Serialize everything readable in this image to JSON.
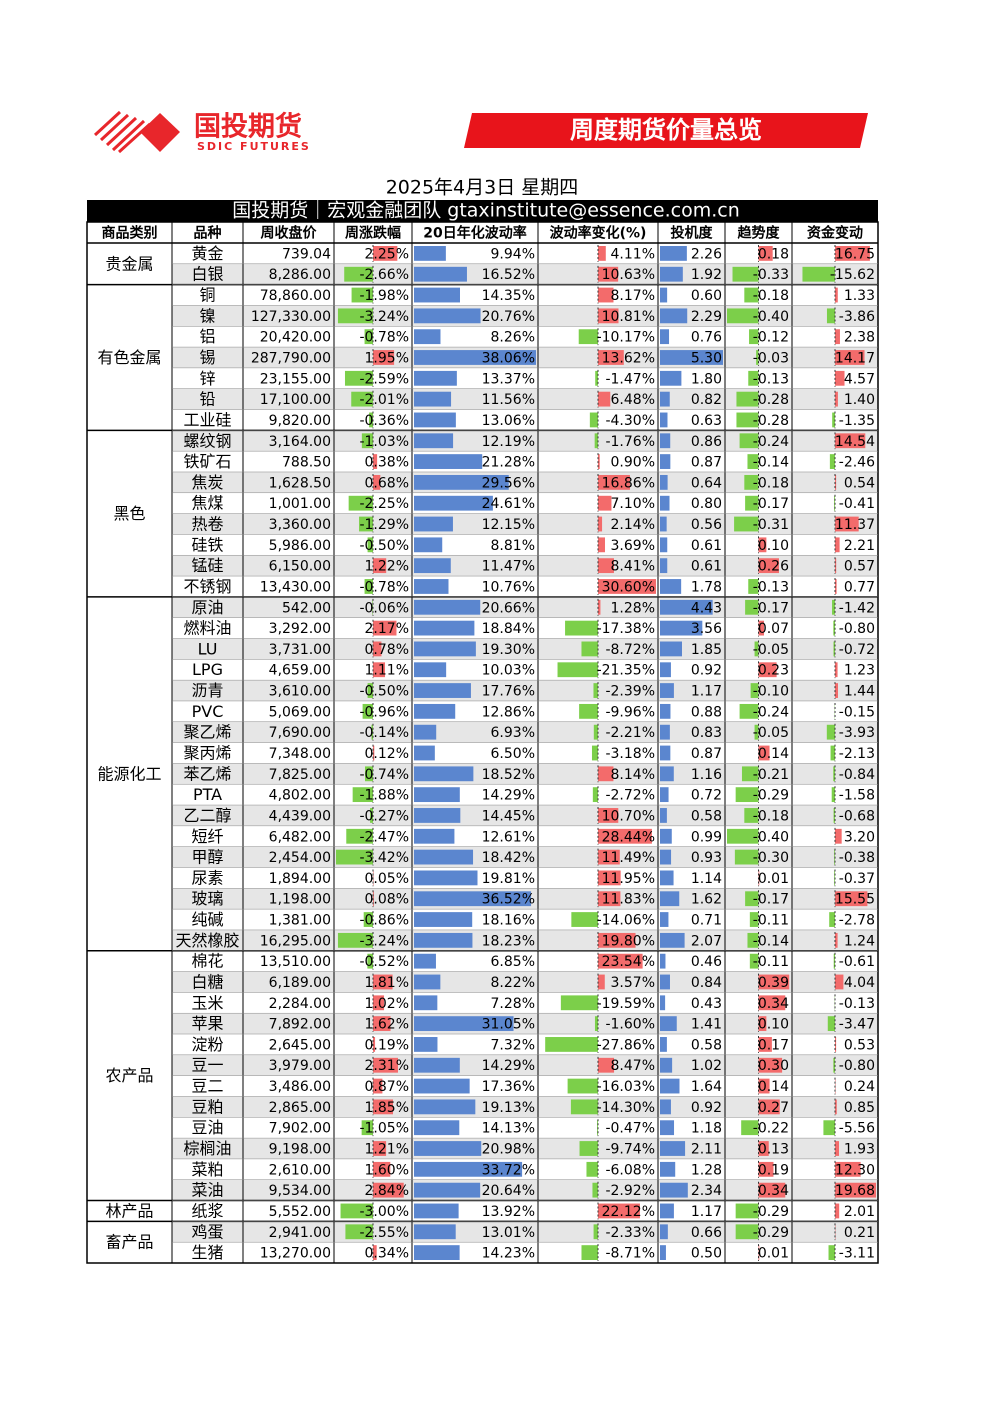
{
  "header": {
    "logo": "国投期货",
    "logo_en": "SDIC FUTURES",
    "banner": "周度期货价量总览",
    "date": "2025年4月3日 星期四",
    "team": "国投期货｜宏观金融团队 gtaxinstitute@essence.com.cn"
  },
  "table": {
    "columns": [
      "商品类别",
      "品种",
      "周收盘价",
      "周涨跌幅",
      "20日年化波动率",
      "波动率变化(%)",
      "投机度",
      "趋势度",
      "资金变动"
    ],
    "groups": [
      {
        "name": "贵金属",
        "rows": [
          [
            "黄金",
            "739.04",
            "2.25%",
            "9.94%",
            "4.11%",
            "2.26",
            "0.18",
            "16.75"
          ],
          [
            "白银",
            "8,286.00",
            "-2.66%",
            "16.52%",
            "10.63%",
            "1.92",
            "-0.33",
            "-15.62"
          ]
        ]
      },
      {
        "name": "有色金属",
        "rows": [
          [
            "铜",
            "78,860.00",
            "-1.98%",
            "14.35%",
            "8.17%",
            "0.60",
            "-0.18",
            "1.33"
          ],
          [
            "镍",
            "127,330.00",
            "-3.24%",
            "20.76%",
            "10.81%",
            "2.29",
            "-0.40",
            "-3.86"
          ],
          [
            "铝",
            "20,420.00",
            "-0.78%",
            "8.26%",
            "-10.17%",
            "0.76",
            "-0.12",
            "2.38"
          ],
          [
            "锡",
            "287,790.00",
            "1.95%",
            "38.06%",
            "13.62%",
            "5.30",
            "-0.03",
            "14.17"
          ],
          [
            "锌",
            "23,155.00",
            "-2.59%",
            "13.37%",
            "-1.47%",
            "1.80",
            "-0.13",
            "4.57"
          ],
          [
            "铅",
            "17,100.00",
            "-2.01%",
            "11.56%",
            "6.48%",
            "0.82",
            "-0.28",
            "1.40"
          ],
          [
            "工业硅",
            "9,820.00",
            "-0.36%",
            "13.06%",
            "-4.30%",
            "0.63",
            "-0.28",
            "-1.35"
          ]
        ]
      },
      {
        "name": "黑色",
        "rows": [
          [
            "螺纹钢",
            "3,164.00",
            "-1.03%",
            "12.19%",
            "-1.76%",
            "0.86",
            "-0.24",
            "14.54"
          ],
          [
            "铁矿石",
            "788.50",
            "0.38%",
            "21.28%",
            "0.90%",
            "0.87",
            "-0.14",
            "-2.46"
          ],
          [
            "焦炭",
            "1,628.50",
            "0.68%",
            "29.56%",
            "16.86%",
            "0.64",
            "-0.18",
            "0.54"
          ],
          [
            "焦煤",
            "1,001.00",
            "-2.25%",
            "24.61%",
            "7.10%",
            "0.80",
            "-0.17",
            "-0.41"
          ],
          [
            "热卷",
            "3,360.00",
            "-1.29%",
            "12.15%",
            "2.14%",
            "0.56",
            "-0.31",
            "11.37"
          ],
          [
            "硅铁",
            "5,986.00",
            "-0.50%",
            "8.81%",
            "3.69%",
            "0.61",
            "0.10",
            "2.21"
          ],
          [
            "锰硅",
            "6,150.00",
            "1.22%",
            "11.47%",
            "8.41%",
            "0.61",
            "0.26",
            "0.57"
          ],
          [
            "不锈钢",
            "13,430.00",
            "-0.78%",
            "10.76%",
            "30.60%",
            "1.78",
            "-0.13",
            "0.77"
          ]
        ]
      },
      {
        "name": "能源化工",
        "rows": [
          [
            "原油",
            "542.00",
            "-0.06%",
            "20.66%",
            "1.28%",
            "4.43",
            "-0.17",
            "-1.42"
          ],
          [
            "燃料油",
            "3,292.00",
            "2.17%",
            "18.84%",
            "-17.38%",
            "3.56",
            "0.07",
            "-0.80"
          ],
          [
            "LU",
            "3,731.00",
            "0.78%",
            "19.30%",
            "-8.72%",
            "1.85",
            "-0.05",
            "-0.72"
          ],
          [
            "LPG",
            "4,659.00",
            "1.11%",
            "10.03%",
            "-21.35%",
            "0.92",
            "0.23",
            "1.23"
          ],
          [
            "沥青",
            "3,610.00",
            "-0.50%",
            "17.76%",
            "-2.39%",
            "1.17",
            "-0.10",
            "1.44"
          ],
          [
            "PVC",
            "5,069.00",
            "-0.96%",
            "12.86%",
            "-9.96%",
            "0.88",
            "-0.24",
            "-0.15"
          ],
          [
            "聚乙烯",
            "7,690.00",
            "-0.14%",
            "6.93%",
            "-2.21%",
            "0.83",
            "-0.05",
            "-3.93"
          ],
          [
            "聚丙烯",
            "7,348.00",
            "0.12%",
            "6.50%",
            "-3.18%",
            "0.87",
            "0.14",
            "-2.13"
          ],
          [
            "苯乙烯",
            "7,825.00",
            "-0.74%",
            "18.52%",
            "8.14%",
            "1.16",
            "-0.21",
            "-0.84"
          ],
          [
            "PTA",
            "4,802.00",
            "-1.88%",
            "14.29%",
            "-2.72%",
            "0.72",
            "-0.29",
            "-1.58"
          ],
          [
            "乙二醇",
            "4,439.00",
            "-0.27%",
            "14.45%",
            "10.70%",
            "0.58",
            "-0.18",
            "-0.68"
          ],
          [
            "短纤",
            "6,482.00",
            "-2.47%",
            "12.61%",
            "28.44%",
            "0.99",
            "-0.40",
            "3.20"
          ],
          [
            "甲醇",
            "2,454.00",
            "-3.42%",
            "18.42%",
            "11.49%",
            "0.93",
            "-0.30",
            "-0.38"
          ],
          [
            "尿素",
            "1,894.00",
            "0.05%",
            "19.81%",
            "11.95%",
            "1.14",
            "0.01",
            "-0.37"
          ],
          [
            "玻璃",
            "1,198.00",
            "0.08%",
            "36.52%",
            "11.83%",
            "1.62",
            "-0.17",
            "15.55"
          ],
          [
            "纯碱",
            "1,381.00",
            "-0.86%",
            "18.16%",
            "-14.06%",
            "0.71",
            "-0.11",
            "-2.78"
          ],
          [
            "天然橡胶",
            "16,295.00",
            "-3.24%",
            "18.23%",
            "19.80%",
            "2.07",
            "-0.14",
            "1.24"
          ]
        ]
      },
      {
        "name": "农产品",
        "rows": [
          [
            "棉花",
            "13,510.00",
            "-0.52%",
            "6.85%",
            "23.54%",
            "0.46",
            "-0.11",
            "-0.61"
          ],
          [
            "白糖",
            "6,189.00",
            "1.81%",
            "8.22%",
            "3.57%",
            "0.84",
            "0.39",
            "4.04"
          ],
          [
            "玉米",
            "2,284.00",
            "1.02%",
            "7.28%",
            "-19.59%",
            "0.43",
            "0.34",
            "-0.13"
          ],
          [
            "苹果",
            "7,892.00",
            "1.62%",
            "31.05%",
            "-1.60%",
            "1.41",
            "0.10",
            "-3.47"
          ],
          [
            "淀粉",
            "2,645.00",
            "0.19%",
            "7.32%",
            "-27.86%",
            "0.58",
            "0.17",
            "0.53"
          ],
          [
            "豆一",
            "3,979.00",
            "2.31%",
            "14.29%",
            "8.47%",
            "1.02",
            "0.30",
            "-0.80"
          ],
          [
            "豆二",
            "3,486.00",
            "0.87%",
            "17.36%",
            "-16.03%",
            "1.64",
            "0.14",
            "0.24"
          ],
          [
            "豆粕",
            "2,865.00",
            "1.85%",
            "19.13%",
            "-14.30%",
            "0.92",
            "0.27",
            "0.85"
          ],
          [
            "豆油",
            "7,902.00",
            "-1.05%",
            "14.13%",
            "-0.47%",
            "1.18",
            "-0.22",
            "-5.56"
          ],
          [
            "棕榈油",
            "9,198.00",
            "1.21%",
            "20.98%",
            "-9.74%",
            "2.11",
            "0.13",
            "1.93"
          ],
          [
            "菜粕",
            "2,610.00",
            "1.60%",
            "33.72%",
            "-6.08%",
            "1.28",
            "0.19",
            "12.30"
          ],
          [
            "菜油",
            "9,534.00",
            "2.84%",
            "20.64%",
            "-2.92%",
            "2.34",
            "0.34",
            "19.68"
          ]
        ]
      },
      {
        "name": "林产品",
        "rows": [
          [
            "纸浆",
            "5,552.00",
            "-3.00%",
            "13.92%",
            "22.12%",
            "1.17",
            "-0.29",
            "2.01"
          ]
        ]
      },
      {
        "name": "畜产品",
        "rows": [
          [
            "鸡蛋",
            "2,941.00",
            "-2.55%",
            "13.01%",
            "-2.33%",
            "0.66",
            "-0.29",
            "0.21"
          ],
          [
            "生猪",
            "13,270.00",
            "0.34%",
            "14.23%",
            "-8.71%",
            "0.50",
            "0.01",
            "-3.11"
          ]
        ]
      }
    ]
  }
}
